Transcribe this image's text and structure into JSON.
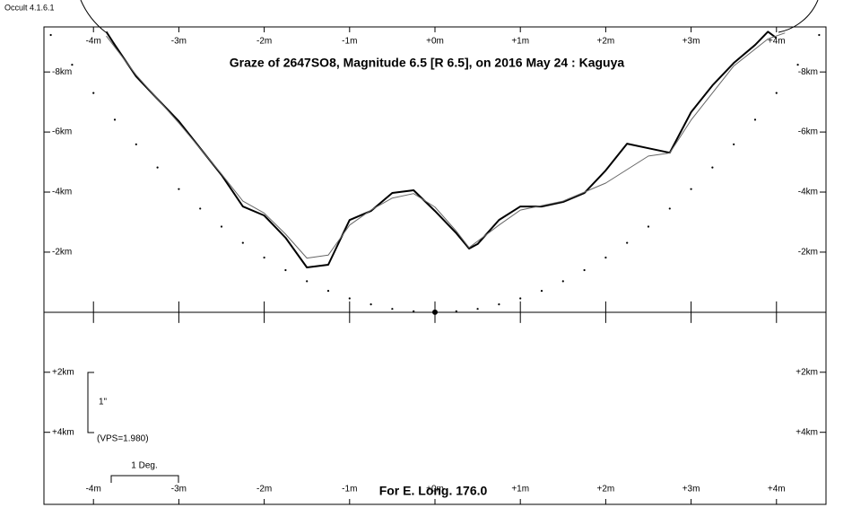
{
  "app_label": "Occult 4.1.6.1",
  "chart_data": {
    "type": "line",
    "title": "Graze of  2647SO8,  Magnitude 6.5 [R 6.5],  on 2016 May 24  :  Kaguya",
    "footer": "For E. Long. 176.0",
    "annotations": [
      "1\"",
      "(VPS=1.980)",
      "1 Deg."
    ],
    "xlim": [
      -4.58,
      4.58
    ],
    "ylim": [
      6.4,
      -9.5
    ],
    "xticks": [
      {
        "value": -4,
        "label": "-4m"
      },
      {
        "value": -3,
        "label": "-3m"
      },
      {
        "value": -2,
        "label": "-2m"
      },
      {
        "value": -1,
        "label": "-1m"
      },
      {
        "value": 0,
        "label": "+0m"
      },
      {
        "value": 1,
        "label": "+1m"
      },
      {
        "value": 2,
        "label": "+2m"
      },
      {
        "value": 3,
        "label": "+3m"
      },
      {
        "value": 4,
        "label": "+4m"
      }
    ],
    "yticks": [
      {
        "value": -8,
        "label": "-8km"
      },
      {
        "value": -6,
        "label": "-6km"
      },
      {
        "value": -4,
        "label": "-4km"
      },
      {
        "value": -2,
        "label": "-2km"
      },
      {
        "value": 2,
        "label": "+2km"
      },
      {
        "value": 4,
        "label": "+4km"
      }
    ],
    "series": [
      {
        "color": "#000000",
        "style": "solid-thick",
        "x": [
          -3.85,
          -3.75,
          -3.5,
          -3.25,
          -3,
          -2.75,
          -2.5,
          -2.25,
          -2,
          -1.75,
          -1.5,
          -1.25,
          -1,
          -0.75,
          -0.5,
          -0.25,
          0,
          0.25,
          0.4,
          0.5,
          0.75,
          1,
          1.25,
          1.5,
          1.75,
          2,
          2.25,
          2.5,
          2.75,
          3,
          3.25,
          3.5,
          3.75,
          3.9,
          4
        ],
        "values": [
          -9.34,
          -8.9,
          -7.85,
          -7.1,
          -6.36,
          -5.46,
          -4.57,
          -3.52,
          -3.22,
          -2.48,
          -1.49,
          -1.58,
          -3.07,
          -3.37,
          -3.97,
          -4.06,
          -3.37,
          -2.63,
          -2.12,
          -2.27,
          -3.07,
          -3.52,
          -3.52,
          -3.67,
          -3.97,
          -4.72,
          -5.61,
          -5.46,
          -5.31,
          -6.66,
          -7.55,
          -8.3,
          -8.9,
          -9.34,
          -9.13
        ]
      },
      {
        "color": "#666666",
        "style": "solid-thin",
        "x": [
          -3.85,
          -3.5,
          -3,
          -2.5,
          -2.25,
          -2,
          -1.75,
          -1.5,
          -1.25,
          -1,
          -0.75,
          -0.5,
          -0.25,
          0,
          0.25,
          0.4,
          0.75,
          1,
          1.5,
          2,
          2.5,
          2.75,
          3,
          3.5,
          3.9,
          4.1
        ],
        "values": [
          -9.2,
          -7.9,
          -6.3,
          -4.6,
          -3.7,
          -3.3,
          -2.6,
          -1.8,
          -1.9,
          -2.9,
          -3.4,
          -3.8,
          -3.95,
          -3.5,
          -2.7,
          -2.15,
          -2.9,
          -3.4,
          -3.7,
          -4.3,
          -5.2,
          -5.3,
          -6.4,
          -8.2,
          -9.1,
          -9.3
        ]
      },
      {
        "color": "#000000",
        "style": "dotted",
        "x": [
          -4.5,
          -4.25,
          -4,
          -3.75,
          -3.5,
          -3.25,
          -3,
          -2.75,
          -2.5,
          -2.25,
          -2,
          -1.75,
          -1.5,
          -1.25,
          -1,
          -0.75,
          -0.5,
          -0.25,
          0,
          0.25,
          0.5,
          0.75,
          1,
          1.25,
          1.5,
          1.75,
          2,
          2.25,
          2.5,
          2.75,
          3,
          3.25,
          3.5,
          3.75,
          4,
          4.25,
          4.5
        ],
        "values": [
          -9.23,
          -8.24,
          -7.3,
          -6.41,
          -5.59,
          -4.82,
          -4.1,
          -3.45,
          -2.85,
          -2.31,
          -1.82,
          -1.4,
          -1.03,
          -0.71,
          -0.46,
          -0.26,
          -0.11,
          -0.03,
          0,
          -0.03,
          -0.11,
          -0.26,
          -0.46,
          -0.71,
          -1.03,
          -1.4,
          -1.82,
          -2.31,
          -2.85,
          -3.45,
          -4.1,
          -4.82,
          -5.59,
          -6.41,
          -7.3,
          -8.24,
          -9.23
        ]
      }
    ]
  }
}
